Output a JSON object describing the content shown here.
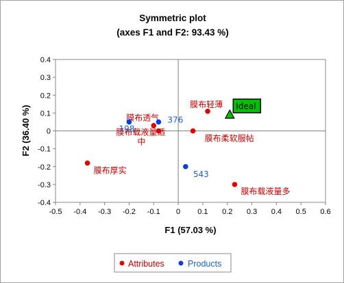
{
  "chart_data": {
    "type": "scatter",
    "title": "Symmetric plot",
    "subtitle": "(axes F1 and F2: 93.43 %)",
    "xlabel": "F1 (57.03 %)",
    "ylabel": "F2 (36.40 %)",
    "xlim": [
      -0.5,
      0.6
    ],
    "ylim": [
      -0.4,
      0.4
    ],
    "x_ticks": [
      "-0.5",
      "-0.4",
      "-0.3",
      "-0.2",
      "-0.1",
      "0",
      "0.1",
      "0.2",
      "0.3",
      "0.4",
      "0.5",
      "0.6"
    ],
    "y_ticks": [
      "0.4",
      "0.3",
      "0.2",
      "0.1",
      "0",
      "-0.1",
      "-0.2",
      "-0.3",
      "-0.4"
    ],
    "grid": false,
    "zero_lines": true,
    "legend_position": "bottom-center",
    "series": [
      {
        "name": "Attributes",
        "color": "#e00000",
        "label_color": "#c00000",
        "points": [
          {
            "label": "膜布轻薄",
            "x": 0.12,
            "y": 0.11
          },
          {
            "label": "膜布透气",
            "x": -0.1,
            "y": 0.03
          },
          {
            "label": "膜布载液量适中",
            "x": -0.08,
            "y": 0.0
          },
          {
            "label": "膜布柔软服帖",
            "x": 0.06,
            "y": 0.0
          },
          {
            "label": "膜布厚实",
            "x": -0.37,
            "y": -0.18
          },
          {
            "label": "膜布载液量多",
            "x": 0.23,
            "y": -0.3
          }
        ]
      },
      {
        "name": "Products",
        "color": "#0040e0",
        "label_color": "#2060c0",
        "points": [
          {
            "label": "198",
            "x": -0.2,
            "y": 0.05
          },
          {
            "label": "376",
            "x": -0.08,
            "y": 0.05
          },
          {
            "label": "543",
            "x": 0.03,
            "y": -0.2
          }
        ]
      }
    ],
    "ideal": {
      "label": "Ideal",
      "x": 0.21,
      "y": 0.09,
      "fill": "#00c000",
      "box_fill": "#00c000"
    }
  }
}
